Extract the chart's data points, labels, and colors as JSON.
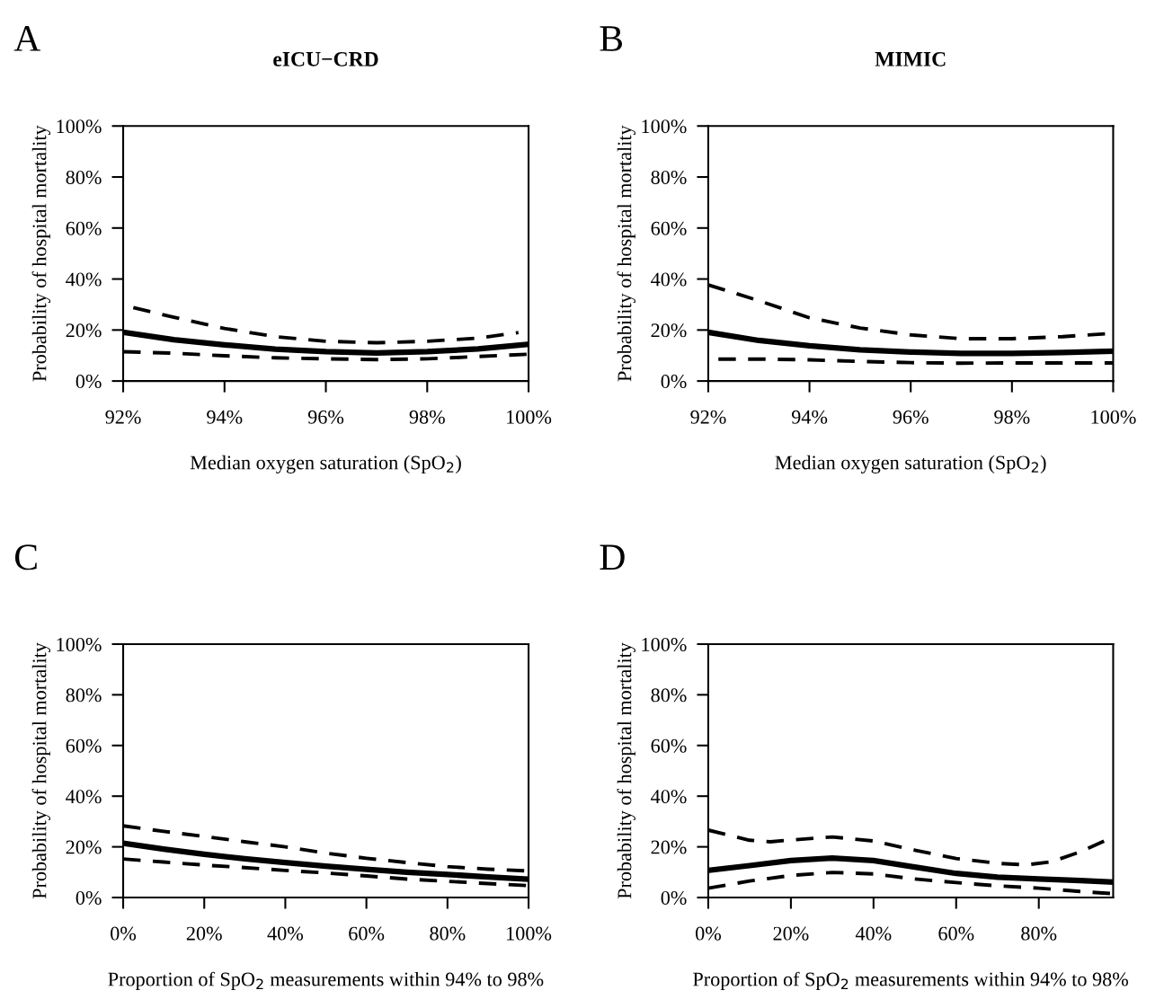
{
  "chart_data": [
    {
      "type": "line",
      "title": "eICU−CRD",
      "annotations": [
        "A"
      ],
      "xlabel": "Median oxygen saturation (SpO$_{2}$)",
      "ylabel": "Probability of hospital mortality",
      "xlim": [
        92,
        100
      ],
      "ylim": [
        0,
        100
      ],
      "xticks": [
        {
          "value": 92,
          "label": "92%"
        },
        {
          "value": 94,
          "label": "94%"
        },
        {
          "value": 96,
          "label": "96%"
        },
        {
          "value": 98,
          "label": "98%"
        },
        {
          "value": 100,
          "label": "100%"
        }
      ],
      "yticks": [
        {
          "value": 0,
          "label": "0%"
        },
        {
          "value": 20,
          "label": "20%"
        },
        {
          "value": 40,
          "label": "40%"
        },
        {
          "value": 60,
          "label": "60%"
        },
        {
          "value": 80,
          "label": "80%"
        },
        {
          "value": 100,
          "label": "100%"
        }
      ],
      "grid": false,
      "legend": false,
      "series": [
        {
          "color": "#000000",
          "line_style": "solid",
          "x": [
            92,
            93,
            94,
            95,
            96,
            97,
            98,
            99,
            100
          ],
          "values": [
            19.1,
            16.2,
            14.2,
            12.5,
            11.5,
            11.0,
            11.5,
            12.6,
            14.4
          ]
        },
        {
          "color": "#000000",
          "line_style": "dashed",
          "x": [
            92.2,
            93,
            94,
            95,
            96,
            97,
            98,
            99,
            99.8
          ],
          "values": [
            28.8,
            25,
            20.6,
            17.4,
            15.6,
            15.0,
            15.6,
            16.8,
            19
          ]
        },
        {
          "color": "#000000",
          "line_style": "dashed",
          "x": [
            92,
            93,
            94,
            95,
            96,
            97,
            98,
            99,
            100
          ],
          "values": [
            11.5,
            10.9,
            9.9,
            9.1,
            8.7,
            8.4,
            8.7,
            9.6,
            10.5
          ]
        }
      ]
    },
    {
      "type": "line",
      "title": "MIMIC",
      "annotations": [
        "B"
      ],
      "xlabel": "Median oxygen saturation (SpO$_{2}$)",
      "ylabel": "Probability of hospital mortality",
      "xlim": [
        92,
        100
      ],
      "ylim": [
        0,
        100
      ],
      "xticks": [
        {
          "value": 92,
          "label": "92%"
        },
        {
          "value": 94,
          "label": "94%"
        },
        {
          "value": 96,
          "label": "96%"
        },
        {
          "value": 98,
          "label": "98%"
        },
        {
          "value": 100,
          "label": "100%"
        }
      ],
      "yticks": [
        {
          "value": 0,
          "label": "0%"
        },
        {
          "value": 20,
          "label": "20%"
        },
        {
          "value": 40,
          "label": "40%"
        },
        {
          "value": 60,
          "label": "60%"
        },
        {
          "value": 80,
          "label": "80%"
        },
        {
          "value": 100,
          "label": "100%"
        }
      ],
      "grid": false,
      "legend": false,
      "series": [
        {
          "color": "#000000",
          "line_style": "solid",
          "x": [
            92,
            93,
            94,
            95,
            96,
            97,
            98,
            99,
            100
          ],
          "values": [
            19.1,
            15.9,
            13.8,
            12.2,
            11.4,
            10.8,
            10.8,
            11.2,
            11.7
          ]
        },
        {
          "color": "#000000",
          "line_style": "dashed",
          "x": [
            92,
            93,
            94,
            95,
            96,
            97,
            98,
            99,
            100
          ],
          "values": [
            37.7,
            31.5,
            24.8,
            20.8,
            18.1,
            16.6,
            16.6,
            17.4,
            18.7
          ]
        },
        {
          "color": "#000000",
          "line_style": "dashed",
          "x": [
            92.2,
            93,
            94,
            95,
            96,
            97,
            98,
            99,
            100
          ],
          "values": [
            8.6,
            8.6,
            8.3,
            7.7,
            7.2,
            7.0,
            7.1,
            7.1,
            7.1
          ]
        }
      ]
    },
    {
      "type": "line",
      "annotations": [
        "C"
      ],
      "xlabel": "Proportion of SpO$_{2}$ measurements within 94% to 98%",
      "ylabel": "Probability of hospital mortality",
      "xlim": [
        0,
        100
      ],
      "ylim": [
        0,
        100
      ],
      "xticks": [
        {
          "value": 0,
          "label": "0%"
        },
        {
          "value": 20,
          "label": "20%"
        },
        {
          "value": 40,
          "label": "40%"
        },
        {
          "value": 60,
          "label": "60%"
        },
        {
          "value": 80,
          "label": "80%"
        },
        {
          "value": 100,
          "label": "100%"
        }
      ],
      "yticks": [
        {
          "value": 0,
          "label": "0%"
        },
        {
          "value": 20,
          "label": "20%"
        },
        {
          "value": 40,
          "label": "40%"
        },
        {
          "value": 60,
          "label": "60%"
        },
        {
          "value": 80,
          "label": "80%"
        },
        {
          "value": 100,
          "label": "100%"
        }
      ],
      "grid": false,
      "legend": false,
      "series": [
        {
          "color": "#000000",
          "line_style": "solid",
          "x": [
            0,
            10,
            20,
            30,
            40,
            50,
            60,
            70,
            80,
            90,
            100
          ],
          "values": [
            21.4,
            19.1,
            17.1,
            15.3,
            13.8,
            12.4,
            11.1,
            10.0,
            9.1,
            8.1,
            7.2
          ]
        },
        {
          "color": "#000000",
          "line_style": "dashed",
          "x": [
            0,
            10,
            20,
            30,
            40,
            50,
            60,
            70,
            80,
            90,
            100
          ],
          "values": [
            28.3,
            26.1,
            24.1,
            22,
            20,
            17.5,
            15.5,
            13.8,
            12.2,
            11.2,
            10.5
          ]
        },
        {
          "color": "#000000",
          "line_style": "dashed",
          "x": [
            0,
            10,
            20,
            30,
            40,
            50,
            60,
            70,
            80,
            90,
            100
          ],
          "values": [
            15.2,
            14,
            12.8,
            11.8,
            10.7,
            9.7,
            8.5,
            7.3,
            6.4,
            5.5,
            4.7
          ]
        }
      ]
    },
    {
      "type": "line",
      "annotations": [
        "D"
      ],
      "xlabel": "Proportion of SpO$_{2}$ measurements within 94% to 98%",
      "ylabel": "Probability of hospital mortality",
      "xlim": [
        0,
        98
      ],
      "ylim": [
        0,
        100
      ],
      "xticks": [
        {
          "value": 0,
          "label": "0%"
        },
        {
          "value": 20,
          "label": "20%"
        },
        {
          "value": 40,
          "label": "40%"
        },
        {
          "value": 60,
          "label": "60%"
        },
        {
          "value": 80,
          "label": "80%"
        }
      ],
      "yticks": [
        {
          "value": 0,
          "label": "0%"
        },
        {
          "value": 20,
          "label": "20%"
        },
        {
          "value": 40,
          "label": "40%"
        },
        {
          "value": 60,
          "label": "60%"
        },
        {
          "value": 80,
          "label": "80%"
        },
        {
          "value": 100,
          "label": "100%"
        }
      ],
      "grid": false,
      "legend": false,
      "series": [
        {
          "color": "#000000",
          "line_style": "solid",
          "x": [
            0,
            10,
            20,
            30,
            40,
            50,
            60,
            70,
            80,
            90,
            98
          ],
          "values": [
            10.7,
            12.6,
            14.6,
            15.6,
            14.6,
            12,
            9.5,
            8,
            7.3,
            6.7,
            6.1
          ]
        },
        {
          "color": "#000000",
          "line_style": "dashed",
          "x": [
            0,
            10,
            15,
            20,
            30,
            40,
            50,
            60,
            70,
            77,
            83,
            90,
            98
          ],
          "values": [
            26.6,
            22.6,
            22,
            22.7,
            23.9,
            22.3,
            18.7,
            15.4,
            13.5,
            12.9,
            14.1,
            18,
            23.9
          ]
        },
        {
          "color": "#000000",
          "line_style": "dashed",
          "x": [
            0,
            10,
            20,
            30,
            40,
            50,
            60,
            70,
            80,
            90,
            98
          ],
          "values": [
            3.7,
            6.5,
            8.7,
            9.9,
            9.3,
            7.3,
            5.9,
            4.6,
            3.7,
            2.4,
            1.5
          ]
        }
      ]
    }
  ]
}
